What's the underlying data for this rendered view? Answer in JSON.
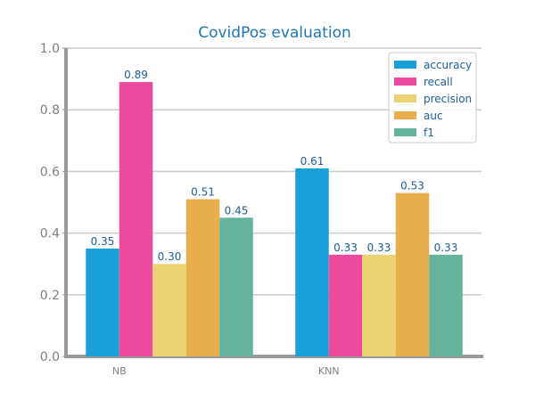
{
  "chart_data": {
    "type": "bar",
    "title": "CovidPos evaluation",
    "xlabel": "",
    "ylabel": "",
    "categories": [
      "NB",
      "KNN"
    ],
    "ylim": [
      0.0,
      1.0
    ],
    "yticks": [
      "0.0",
      "0.2",
      "0.4",
      "0.6",
      "0.8",
      "1.0"
    ],
    "grid": "horizontal",
    "legend_position": "top-right",
    "series": [
      {
        "name": "accuracy",
        "color": "#1a9fd8",
        "values": [
          0.35,
          0.61
        ],
        "labels": [
          "0.35",
          "0.61"
        ]
      },
      {
        "name": "recall",
        "color": "#ec4a9e",
        "values": [
          0.89,
          0.33
        ],
        "labels": [
          "0.89",
          "0.33"
        ]
      },
      {
        "name": "precision",
        "color": "#ebd373",
        "values": [
          0.3,
          0.33
        ],
        "labels": [
          "0.30",
          "0.33"
        ]
      },
      {
        "name": "auc",
        "color": "#e8ae4e",
        "values": [
          0.51,
          0.53
        ],
        "labels": [
          "0.51",
          "0.53"
        ]
      },
      {
        "name": "f1",
        "color": "#64b39d",
        "values": [
          0.45,
          0.33
        ],
        "labels": [
          "0.45",
          "0.33"
        ]
      }
    ]
  }
}
